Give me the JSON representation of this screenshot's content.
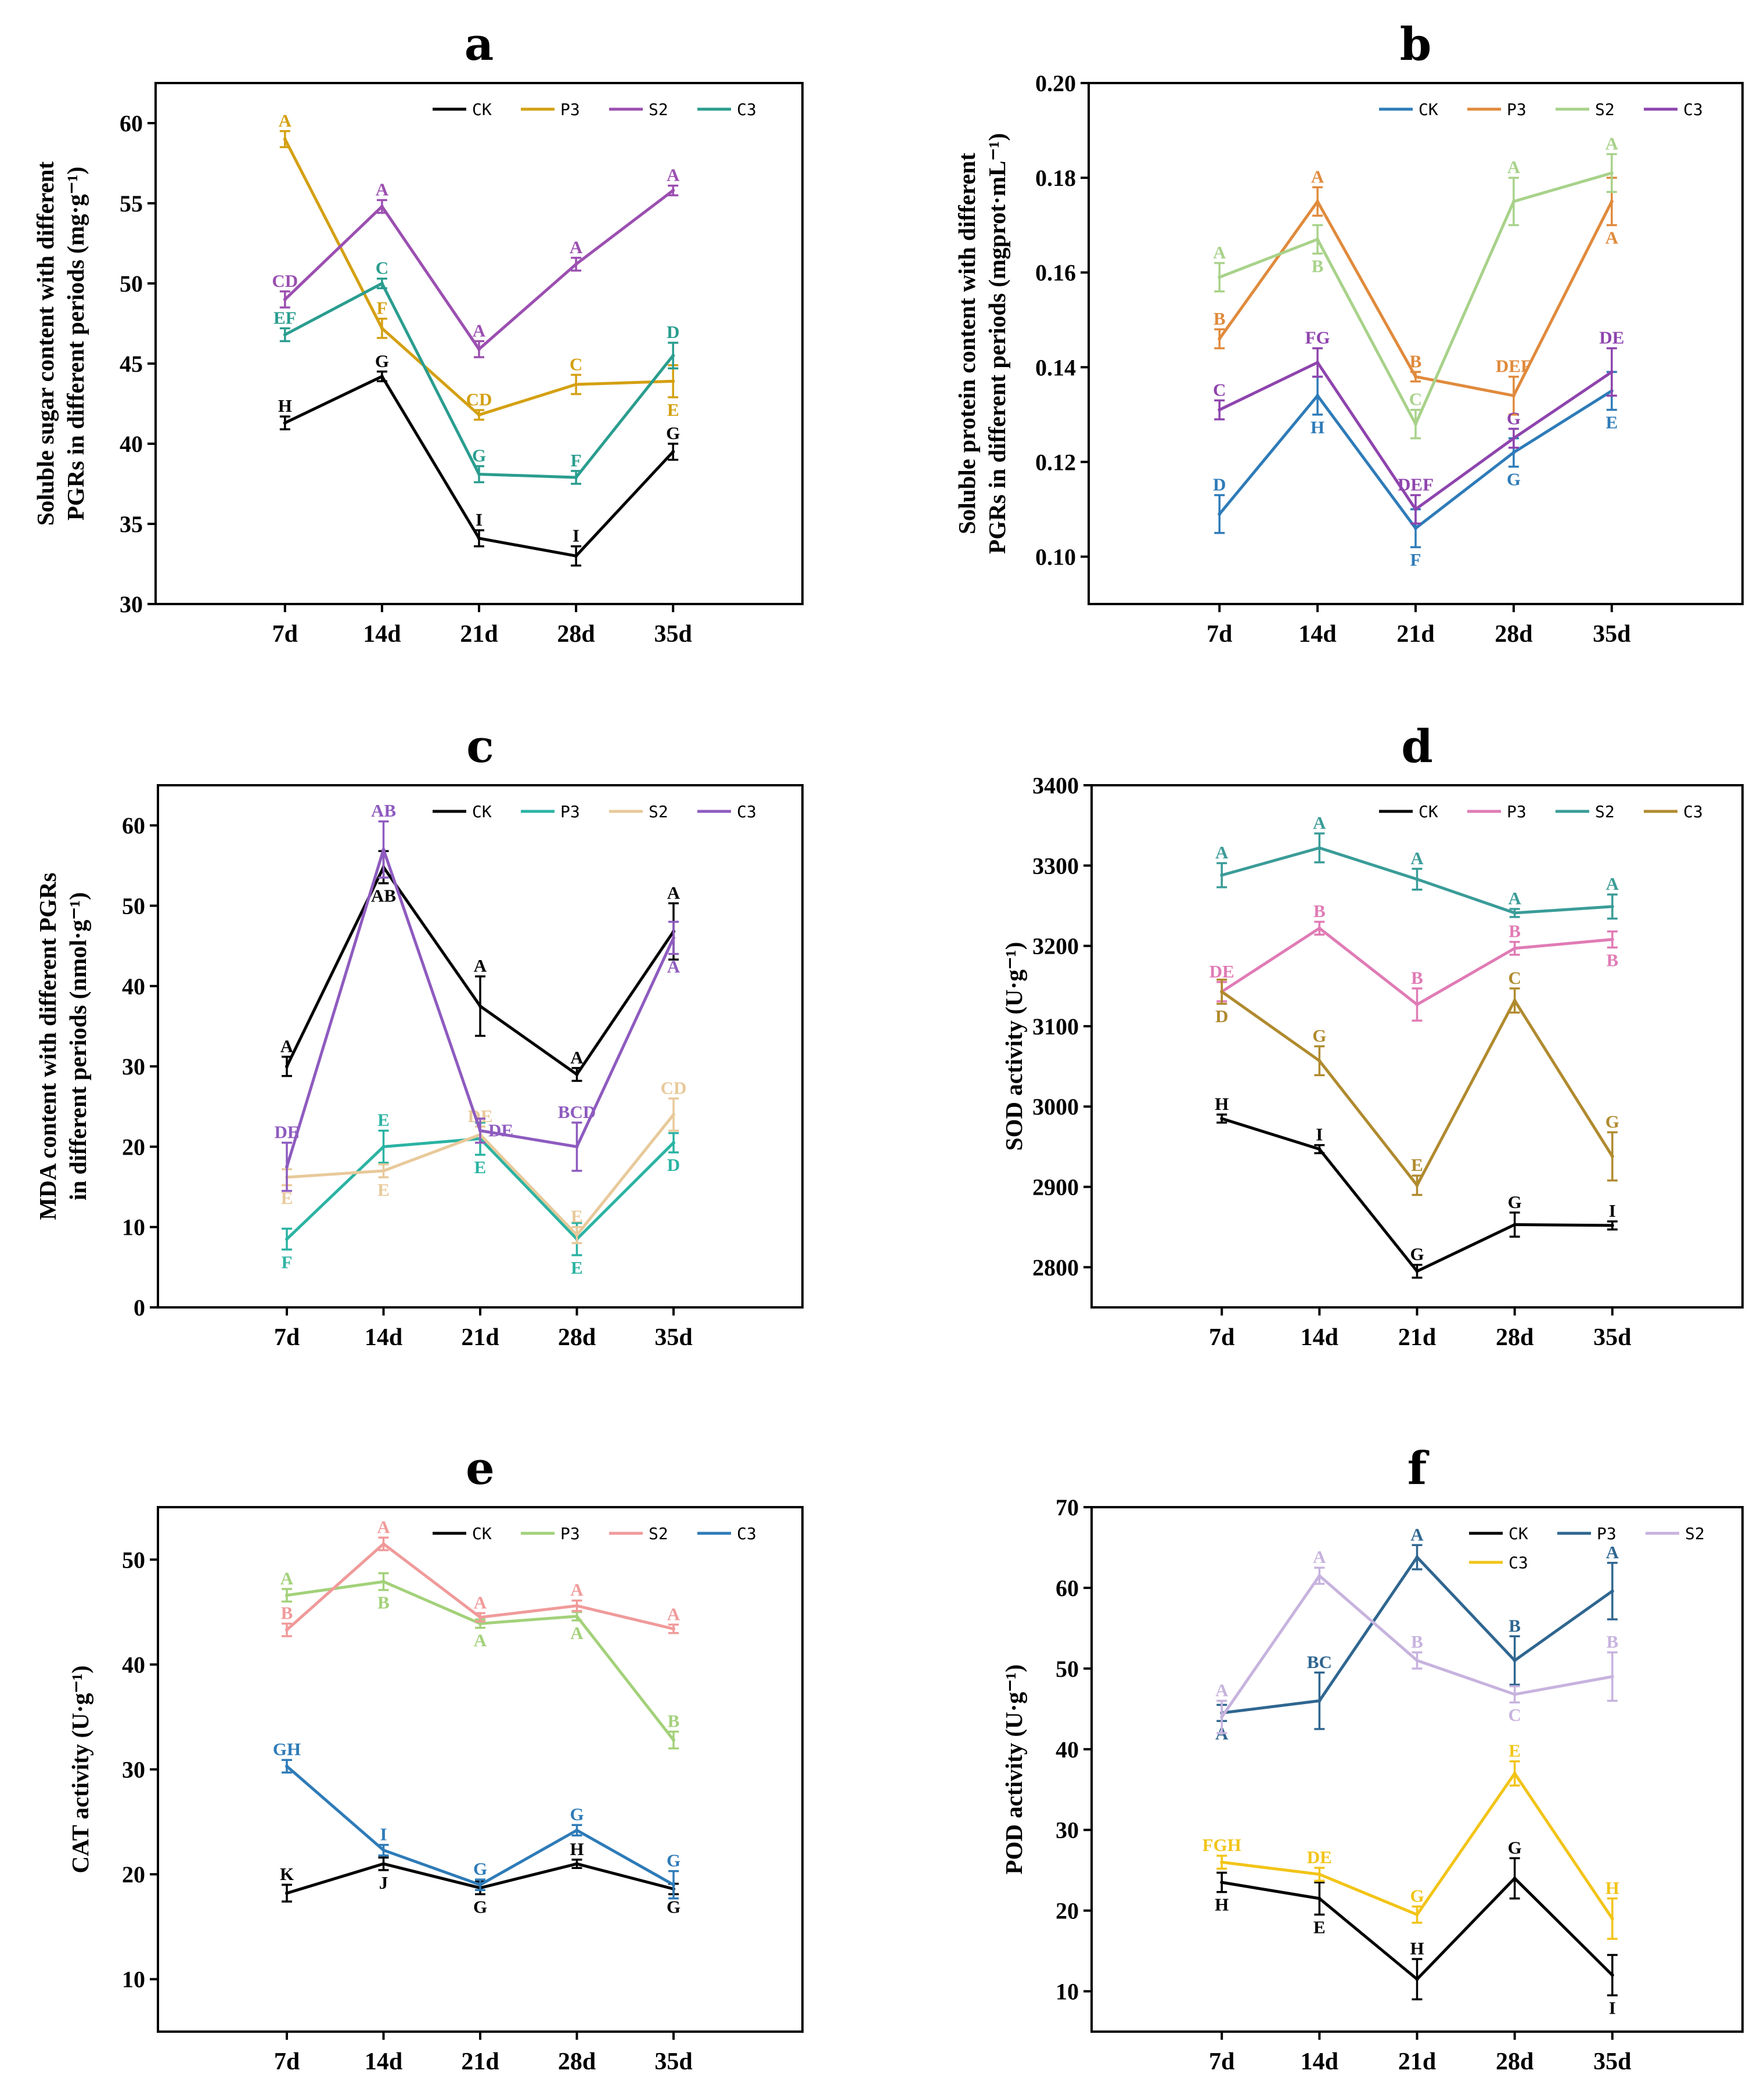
{
  "chart_data": [
    {
      "panel": "a",
      "type": "line",
      "ylabel": [
        "Soluble sugar content with different",
        "PGRs in different periods (mg·g⁻¹)"
      ],
      "categories": [
        "7d",
        "14d",
        "21d",
        "28d",
        "35d"
      ],
      "ylim": [
        30,
        62.5
      ],
      "yticks": [
        "30",
        "35",
        "40",
        "45",
        "50",
        "55",
        "60"
      ],
      "series": [
        {
          "name": "CK",
          "color": "#000000",
          "values": [
            41.3,
            44.2,
            34.1,
            33.0,
            39.5
          ],
          "err": [
            0.4,
            0.3,
            0.5,
            0.6,
            0.5
          ],
          "labels": [
            "H",
            "G",
            "I",
            "I",
            "G"
          ],
          "label_pos": [
            "above",
            "above",
            "above",
            "above",
            "above"
          ]
        },
        {
          "name": "P3",
          "color": "#d4a012",
          "values": [
            59.0,
            47.2,
            41.8,
            43.7,
            43.9
          ],
          "err": [
            0.5,
            0.6,
            0.3,
            0.6,
            1.0
          ],
          "labels": [
            "A",
            "F",
            "CD",
            "C",
            "E"
          ],
          "label_pos": [
            "above",
            "above",
            "above",
            "above",
            "below"
          ]
        },
        {
          "name": "S2",
          "color": "#9b4fb0",
          "values": [
            49.0,
            54.8,
            45.9,
            51.2,
            55.8
          ],
          "err": [
            0.5,
            0.4,
            0.5,
            0.4,
            0.3
          ],
          "labels": [
            "CD",
            "A",
            "A",
            "A",
            "A"
          ],
          "label_pos": [
            "above",
            "above",
            "above",
            "above",
            "above"
          ]
        },
        {
          "name": "C3",
          "color": "#2a9d8f",
          "values": [
            46.8,
            50.0,
            38.1,
            37.9,
            45.5
          ],
          "err": [
            0.4,
            0.3,
            0.5,
            0.4,
            0.8
          ],
          "labels": [
            "EF",
            "C",
            "G",
            "F",
            "D"
          ],
          "label_pos": [
            "above",
            "above",
            "above",
            "above",
            "above"
          ]
        }
      ]
    },
    {
      "panel": "b",
      "type": "line",
      "ylabel": [
        "Soluble protein content with different",
        "PGRs in different periods (mgprot·mL⁻¹)"
      ],
      "categories": [
        "7d",
        "14d",
        "21d",
        "28d",
        "35d"
      ],
      "ylim": [
        0.09,
        0.2
      ],
      "yticks": [
        "0.10",
        "0.12",
        "0.14",
        "0.16",
        "0.18",
        "0.20"
      ],
      "series": [
        {
          "name": "CK",
          "color": "#2e7bb8",
          "values": [
            0.109,
            0.134,
            0.106,
            0.122,
            0.135
          ],
          "err": [
            0.004,
            0.004,
            0.004,
            0.003,
            0.004
          ],
          "labels": [
            "D",
            "H",
            "F",
            "G",
            "E"
          ],
          "label_pos": [
            "above",
            "below",
            "below",
            "below",
            "below"
          ]
        },
        {
          "name": "P3",
          "color": "#e08a3c",
          "values": [
            0.146,
            0.175,
            0.138,
            0.134,
            0.175
          ],
          "err": [
            0.002,
            0.003,
            0.001,
            0.004,
            0.005
          ],
          "labels": [
            "B",
            "A",
            "B",
            "DEF",
            "A"
          ],
          "label_pos": [
            "above",
            "above",
            "above",
            "above",
            "below"
          ]
        },
        {
          "name": "S2",
          "color": "#a8d28a",
          "values": [
            0.159,
            0.167,
            0.128,
            0.175,
            0.181
          ],
          "err": [
            0.003,
            0.003,
            0.003,
            0.005,
            0.004
          ],
          "labels": [
            "A",
            "B",
            "C",
            "A",
            "A"
          ],
          "label_pos": [
            "above",
            "below",
            "above",
            "above",
            "above"
          ]
        },
        {
          "name": "C3",
          "color": "#8e44ad",
          "values": [
            0.131,
            0.141,
            0.11,
            0.125,
            0.139
          ],
          "err": [
            0.002,
            0.003,
            0.003,
            0.002,
            0.005
          ],
          "labels": [
            "C",
            "FG",
            "DEF",
            "G",
            "DE"
          ],
          "label_pos": [
            "above",
            "above",
            "above",
            "above",
            "above"
          ]
        }
      ]
    },
    {
      "panel": "c",
      "type": "line",
      "ylabel": [
        "MDA content with different PGRs",
        "in different periods  (nmol·g⁻¹)"
      ],
      "categories": [
        "7d",
        "14d",
        "21d",
        "28d",
        "35d"
      ],
      "ylim": [
        0,
        65
      ],
      "yticks": [
        "0",
        "10",
        "20",
        "30",
        "40",
        "50",
        "60"
      ],
      "series": [
        {
          "name": "CK",
          "color": "#000000",
          "values": [
            30.0,
            54.8,
            37.5,
            29.0,
            46.8
          ],
          "err": [
            1.2,
            2.0,
            3.7,
            0.8,
            3.5
          ],
          "labels": [
            "A",
            "AB",
            "A",
            "A",
            "A"
          ],
          "label_pos": [
            "above",
            "below",
            "above",
            "above",
            "above"
          ]
        },
        {
          "name": "P3",
          "color": "#2bb3a3",
          "values": [
            8.5,
            20.0,
            21.0,
            8.5,
            20.5
          ],
          "err": [
            1.3,
            2.0,
            2.0,
            2.0,
            1.2
          ],
          "labels": [
            "F",
            "E",
            "E",
            "E",
            "D"
          ],
          "label_pos": [
            "below",
            "above",
            "below",
            "below",
            "below"
          ]
        },
        {
          "name": "S2",
          "color": "#e8c99a",
          "values": [
            16.2,
            17.0,
            21.5,
            9.0,
            24.0
          ],
          "err": [
            1.0,
            0.8,
            1.0,
            1.0,
            2.0
          ],
          "labels": [
            "E",
            "E",
            "DE",
            "E",
            "CD"
          ],
          "label_pos": [
            "below",
            "below",
            "above",
            "above",
            "above"
          ]
        },
        {
          "name": "C3",
          "color": "#8e5bbf",
          "values": [
            17.5,
            57.0,
            22.0,
            20.0,
            46.0
          ],
          "err": [
            3.0,
            3.5,
            1.5,
            3.0,
            2.0
          ],
          "labels": [
            "DE",
            "AB",
            "DE",
            "BCD",
            "A"
          ],
          "label_pos": [
            "above",
            "above",
            "right",
            "above",
            "below"
          ]
        }
      ]
    },
    {
      "panel": "d",
      "type": "line",
      "ylabel": [
        "SOD activity (U·g⁻¹)"
      ],
      "categories": [
        "7d",
        "14d",
        "21d",
        "28d",
        "35d"
      ],
      "ylim": [
        2750,
        3400
      ],
      "yticks": [
        "2800",
        "2900",
        "3000",
        "3100",
        "3200",
        "3300",
        "3400"
      ],
      "series": [
        {
          "name": "CK",
          "color": "#000000",
          "values": [
            2985,
            2947,
            2795,
            2853,
            2852
          ],
          "err": [
            5,
            5,
            8,
            15,
            5
          ],
          "labels": [
            "H",
            "I",
            "G",
            "G",
            "I"
          ],
          "label_pos": [
            "above",
            "above",
            "above",
            "above",
            "above"
          ]
        },
        {
          "name": "P3",
          "color": "#e07bb5",
          "values": [
            3143,
            3222,
            3127,
            3197,
            3208
          ],
          "err": [
            12,
            8,
            20,
            8,
            10
          ],
          "labels": [
            "DE",
            "B",
            "B",
            "B",
            "B"
          ],
          "label_pos": [
            "above",
            "above",
            "above",
            "above",
            "below"
          ]
        },
        {
          "name": "S2",
          "color": "#3a9c98",
          "values": [
            3288,
            3322,
            3283,
            3241,
            3249
          ],
          "err": [
            15,
            18,
            13,
            5,
            15
          ],
          "labels": [
            "A",
            "A",
            "A",
            "A",
            "A"
          ],
          "label_pos": [
            "above",
            "above",
            "above",
            "above",
            "above"
          ]
        },
        {
          "name": "C3",
          "color": "#b08a2e",
          "values": [
            3143,
            3057,
            2902,
            3132,
            2938
          ],
          "err": [
            15,
            18,
            12,
            15,
            30
          ],
          "labels": [
            "D",
            "G",
            "E",
            "C",
            "G"
          ],
          "label_pos": [
            "below",
            "above",
            "above",
            "above",
            "above"
          ]
        }
      ]
    },
    {
      "panel": "e",
      "type": "line",
      "ylabel": [
        "CAT activity (U·g⁻¹)"
      ],
      "categories": [
        "7d",
        "14d",
        "21d",
        "28d",
        "35d"
      ],
      "ylim": [
        5,
        55
      ],
      "yticks": [
        "10",
        "20",
        "30",
        "40",
        "50"
      ],
      "series": [
        {
          "name": "CK",
          "color": "#000000",
          "values": [
            18.2,
            21.0,
            18.7,
            21.0,
            18.6
          ],
          "err": [
            0.8,
            0.6,
            0.6,
            0.4,
            0.5
          ],
          "labels": [
            "K",
            "J",
            "G",
            "H",
            "G"
          ],
          "label_pos": [
            "above",
            "below",
            "below",
            "above",
            "below"
          ]
        },
        {
          "name": "P3",
          "color": "#a3d17a",
          "values": [
            46.6,
            47.9,
            43.9,
            44.6,
            32.8
          ],
          "err": [
            0.6,
            0.8,
            0.4,
            0.4,
            0.8
          ],
          "labels": [
            "A",
            "B",
            "A",
            "A",
            "B"
          ],
          "label_pos": [
            "above",
            "below",
            "below",
            "below",
            "above"
          ]
        },
        {
          "name": "S2",
          "color": "#f09a9a",
          "values": [
            43.3,
            51.5,
            44.5,
            45.6,
            43.4
          ],
          "err": [
            0.6,
            0.6,
            0.4,
            0.5,
            0.4
          ],
          "labels": [
            "B",
            "A",
            "A",
            "A",
            "A"
          ],
          "label_pos": [
            "above",
            "above",
            "above",
            "above",
            "above"
          ]
        },
        {
          "name": "C3",
          "color": "#2e7bb8",
          "values": [
            30.3,
            22.3,
            19.0,
            24.2,
            19.0
          ],
          "err": [
            0.6,
            0.5,
            0.5,
            0.5,
            1.3
          ],
          "labels": [
            "GH",
            "I",
            "G",
            "G",
            "G"
          ],
          "label_pos": [
            "above",
            "above",
            "above",
            "above",
            "above"
          ]
        }
      ]
    },
    {
      "panel": "f",
      "type": "line",
      "ylabel": [
        "POD activity (U·g⁻¹)"
      ],
      "categories": [
        "7d",
        "14d",
        "21d",
        "28d",
        "35d"
      ],
      "ylim": [
        5,
        70
      ],
      "yticks": [
        "10",
        "20",
        "30",
        "40",
        "50",
        "60",
        "70"
      ],
      "series": [
        {
          "name": "CK",
          "color": "#000000",
          "values": [
            23.5,
            21.5,
            11.5,
            24.0,
            12.0
          ],
          "err": [
            1.2,
            2.0,
            2.5,
            2.5,
            2.5
          ],
          "labels": [
            "H",
            "E",
            "H",
            "G",
            "I"
          ],
          "label_pos": [
            "below",
            "below",
            "above",
            "above",
            "below"
          ]
        },
        {
          "name": "P3",
          "color": "#2f6690",
          "values": [
            44.5,
            46.0,
            63.8,
            51.0,
            59.6
          ],
          "err": [
            1.0,
            3.5,
            1.5,
            3.0,
            3.5
          ],
          "labels": [
            "A",
            "BC",
            "A",
            "B",
            "A"
          ],
          "label_pos": [
            "below",
            "above",
            "above",
            "above",
            "above"
          ]
        },
        {
          "name": "S2",
          "color": "#c7b3de",
          "values": [
            44.0,
            61.5,
            51.0,
            46.8,
            49.0
          ],
          "err": [
            2.0,
            1.0,
            1.0,
            1.0,
            3.0
          ],
          "labels": [
            "A",
            "A",
            "B",
            "C",
            "B"
          ],
          "label_pos": [
            "above",
            "above",
            "above",
            "below",
            "above"
          ]
        },
        {
          "name": "C3",
          "color": "#f2c418",
          "values": [
            26.0,
            24.5,
            19.5,
            37.0,
            19.0
          ],
          "err": [
            0.8,
            0.8,
            1.0,
            1.5,
            2.5
          ],
          "labels": [
            "FGH",
            "DE",
            "G",
            "E",
            "H"
          ],
          "label_pos": [
            "above",
            "above",
            "above",
            "above",
            "above"
          ]
        }
      ]
    }
  ]
}
